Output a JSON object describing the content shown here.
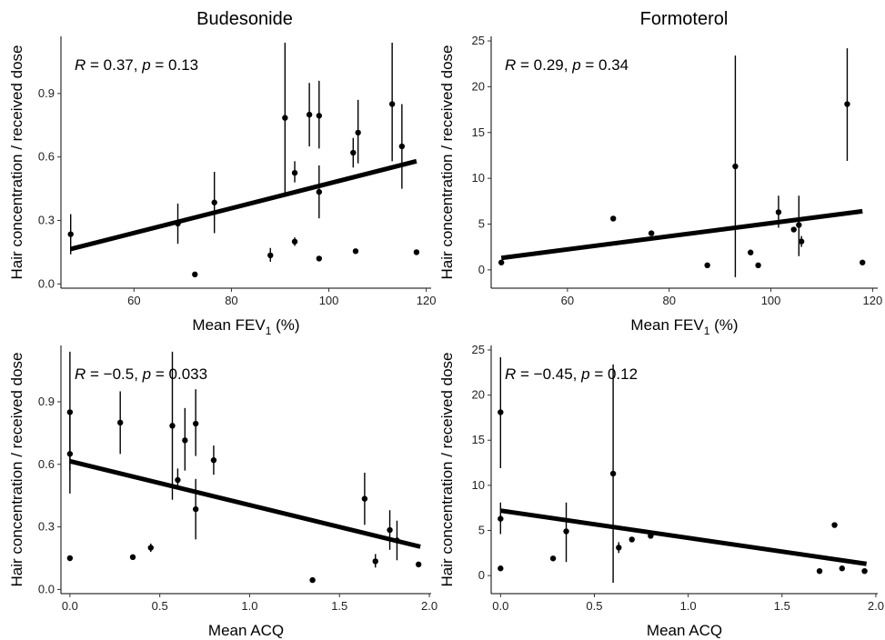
{
  "column_titles": [
    "Budesonide",
    "Formoterol"
  ],
  "chart_data": [
    {
      "type": "scatter",
      "title": "Budesonide",
      "xlabel": "Mean FEV",
      "xlabel_sub": "1",
      "xlabel_suffix": " (%)",
      "ylabel": "Hair concentration / received dose",
      "stat": {
        "R": "0.37",
        "p": "0.13"
      },
      "xlim": [
        45,
        121
      ],
      "ylim": [
        -0.02,
        1.17
      ],
      "xticks": [
        60,
        80,
        100,
        120
      ],
      "xtick_labels": [
        "60",
        "80",
        "100",
        "120"
      ],
      "yticks": [
        0.0,
        0.3,
        0.6,
        0.9
      ],
      "ytick_labels": [
        "0.0",
        "0.3",
        "0.6",
        "0.9"
      ],
      "fit": {
        "x": [
          47,
          118
        ],
        "y": [
          0.165,
          0.58
        ]
      },
      "points": [
        {
          "x": 47,
          "y": 0.235,
          "lo": 0.14,
          "hi": 0.33
        },
        {
          "x": 69,
          "y": 0.285,
          "lo": 0.19,
          "hi": 0.38
        },
        {
          "x": 72.5,
          "y": 0.045
        },
        {
          "x": 76.5,
          "y": 0.385,
          "lo": 0.24,
          "hi": 0.53
        },
        {
          "x": 88,
          "y": 0.135,
          "lo": 0.105,
          "hi": 0.17
        },
        {
          "x": 91,
          "y": 0.785,
          "lo": 0.43,
          "hi": 1.14
        },
        {
          "x": 93,
          "y": 0.525,
          "lo": 0.48,
          "hi": 0.58
        },
        {
          "x": 93,
          "y": 0.2,
          "lo": 0.18,
          "hi": 0.22
        },
        {
          "x": 96,
          "y": 0.8,
          "lo": 0.65,
          "hi": 0.95
        },
        {
          "x": 98,
          "y": 0.795,
          "lo": 0.64,
          "hi": 0.96
        },
        {
          "x": 98,
          "y": 0.435,
          "lo": 0.31,
          "hi": 0.56
        },
        {
          "x": 98,
          "y": 0.12
        },
        {
          "x": 105,
          "y": 0.62,
          "lo": 0.55,
          "hi": 0.69
        },
        {
          "x": 105.5,
          "y": 0.155
        },
        {
          "x": 106,
          "y": 0.715,
          "lo": 0.57,
          "hi": 0.87
        },
        {
          "x": 113,
          "y": 0.85,
          "lo": 0.58,
          "hi": 1.14
        },
        {
          "x": 115,
          "y": 0.65,
          "lo": 0.45,
          "hi": 0.85
        },
        {
          "x": 118,
          "y": 0.15
        }
      ]
    },
    {
      "type": "scatter",
      "title": "Formoterol",
      "xlabel": "Mean FEV",
      "xlabel_sub": "1",
      "xlabel_suffix": " (%)",
      "ylabel": "Hair concentration / received dose",
      "stat": {
        "R": "0.29",
        "p": "0.34"
      },
      "xlim": [
        45,
        121
      ],
      "ylim": [
        -2,
        25.5
      ],
      "xticks": [
        60,
        80,
        100,
        120
      ],
      "xtick_labels": [
        "60",
        "80",
        "100",
        "120"
      ],
      "yticks": [
        0,
        5,
        10,
        15,
        20,
        25
      ],
      "ytick_labels": [
        "0",
        "5",
        "10",
        "15",
        "20",
        "25"
      ],
      "fit": {
        "x": [
          47,
          118
        ],
        "y": [
          1.3,
          6.4
        ]
      },
      "points": [
        {
          "x": 47,
          "y": 0.8
        },
        {
          "x": 69,
          "y": 5.6
        },
        {
          "x": 76.5,
          "y": 4.0
        },
        {
          "x": 87.5,
          "y": 0.5
        },
        {
          "x": 93,
          "y": 11.3,
          "lo": -0.8,
          "hi": 23.4
        },
        {
          "x": 96,
          "y": 1.9
        },
        {
          "x": 97.5,
          "y": 0.5
        },
        {
          "x": 101.5,
          "y": 6.3,
          "lo": 4.6,
          "hi": 8.1
        },
        {
          "x": 104.5,
          "y": 4.4
        },
        {
          "x": 105.5,
          "y": 4.9,
          "lo": 1.5,
          "hi": 8.1
        },
        {
          "x": 106,
          "y": 3.1,
          "lo": 2.5,
          "hi": 3.7
        },
        {
          "x": 115,
          "y": 18.1,
          "lo": 11.9,
          "hi": 24.2
        },
        {
          "x": 118,
          "y": 0.8
        }
      ]
    },
    {
      "type": "scatter",
      "title": "",
      "xlabel": "Mean ACQ",
      "xlabel_sub": "",
      "xlabel_suffix": "",
      "ylabel": "Hair concentration / received dose",
      "stat": {
        "R": "−0.5",
        "p": "0.033"
      },
      "xlim": [
        -0.05,
        2.01
      ],
      "ylim": [
        -0.02,
        1.17
      ],
      "xticks": [
        0,
        0.5,
        1.0,
        1.5,
        2.0
      ],
      "xtick_labels": [
        "0.0",
        "0.5",
        "1.0",
        "1.5",
        "2.0"
      ],
      "yticks": [
        0.0,
        0.3,
        0.6,
        0.9
      ],
      "ytick_labels": [
        "0.0",
        "0.3",
        "0.6",
        "0.9"
      ],
      "fit": {
        "x": [
          0,
          1.95
        ],
        "y": [
          0.615,
          0.205
        ]
      },
      "points": [
        {
          "x": 0,
          "y": 0.85,
          "lo": 0.57,
          "hi": 1.14
        },
        {
          "x": 0,
          "y": 0.65,
          "lo": 0.46,
          "hi": 0.84
        },
        {
          "x": 0,
          "y": 0.15
        },
        {
          "x": 0.28,
          "y": 0.8,
          "lo": 0.65,
          "hi": 0.95
        },
        {
          "x": 0.35,
          "y": 0.155
        },
        {
          "x": 0.45,
          "y": 0.2,
          "lo": 0.18,
          "hi": 0.22
        },
        {
          "x": 0.57,
          "y": 0.785,
          "lo": 0.43,
          "hi": 1.14
        },
        {
          "x": 0.6,
          "y": 0.525,
          "lo": 0.48,
          "hi": 0.58
        },
        {
          "x": 0.64,
          "y": 0.715,
          "lo": 0.57,
          "hi": 0.87
        },
        {
          "x": 0.7,
          "y": 0.795,
          "lo": 0.64,
          "hi": 0.96
        },
        {
          "x": 0.7,
          "y": 0.385,
          "lo": 0.24,
          "hi": 0.53
        },
        {
          "x": 0.8,
          "y": 0.62,
          "lo": 0.55,
          "hi": 0.69
        },
        {
          "x": 1.35,
          "y": 0.045
        },
        {
          "x": 1.64,
          "y": 0.435,
          "lo": 0.31,
          "hi": 0.56
        },
        {
          "x": 1.7,
          "y": 0.135,
          "lo": 0.105,
          "hi": 0.17
        },
        {
          "x": 1.78,
          "y": 0.285,
          "lo": 0.19,
          "hi": 0.38
        },
        {
          "x": 1.82,
          "y": 0.235,
          "lo": 0.14,
          "hi": 0.33
        },
        {
          "x": 1.94,
          "y": 0.12
        }
      ]
    },
    {
      "type": "scatter",
      "title": "",
      "xlabel": "Mean ACQ",
      "xlabel_sub": "",
      "xlabel_suffix": "",
      "ylabel": "Hair concentration / received dose",
      "stat": {
        "R": "−0.45",
        "p": "0.12"
      },
      "xlim": [
        -0.05,
        2.01
      ],
      "ylim": [
        -2,
        25.5
      ],
      "xticks": [
        0,
        0.5,
        1.0,
        1.5,
        2.0
      ],
      "xtick_labels": [
        "0.0",
        "0.5",
        "1.0",
        "1.5",
        "2.0"
      ],
      "yticks": [
        0,
        5,
        10,
        15,
        20,
        25
      ],
      "ytick_labels": [
        "0",
        "5",
        "10",
        "15",
        "20",
        "25"
      ],
      "fit": {
        "x": [
          0,
          1.95
        ],
        "y": [
          7.2,
          1.3
        ]
      },
      "points": [
        {
          "x": 0,
          "y": 18.1,
          "lo": 11.9,
          "hi": 24.2
        },
        {
          "x": 0,
          "y": 6.3,
          "lo": 4.6,
          "hi": 8.1
        },
        {
          "x": 0,
          "y": 0.8
        },
        {
          "x": 0.28,
          "y": 1.9
        },
        {
          "x": 0.35,
          "y": 4.9,
          "lo": 1.5,
          "hi": 8.1
        },
        {
          "x": 0.6,
          "y": 11.3,
          "lo": -0.8,
          "hi": 23.4
        },
        {
          "x": 0.63,
          "y": 3.1,
          "lo": 2.5,
          "hi": 3.7
        },
        {
          "x": 0.7,
          "y": 4.0
        },
        {
          "x": 0.8,
          "y": 4.4
        },
        {
          "x": 1.7,
          "y": 0.5
        },
        {
          "x": 1.78,
          "y": 5.6
        },
        {
          "x": 1.82,
          "y": 0.8
        },
        {
          "x": 1.94,
          "y": 0.5
        }
      ]
    }
  ]
}
